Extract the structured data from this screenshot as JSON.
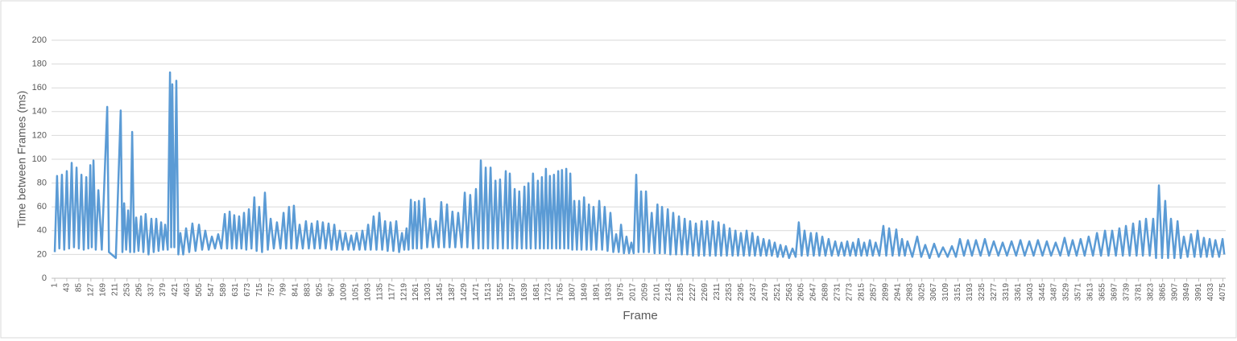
{
  "chart_data": {
    "type": "line",
    "y_label": "Time between Frames (ms)",
    "x_label": "Frame",
    "x": [
      1,
      9,
      17,
      26,
      34,
      43,
      51,
      60,
      68,
      77,
      85,
      94,
      102,
      111,
      118,
      125,
      130,
      136,
      144,
      153,
      165,
      184,
      190,
      214,
      231,
      237,
      243,
      250,
      257,
      264,
      271,
      278,
      285,
      293,
      302,
      310,
      318,
      328,
      338,
      346,
      355,
      363,
      372,
      379,
      386,
      395,
      403,
      407,
      411,
      418,
      425,
      432,
      439,
      449,
      459,
      470,
      481,
      492,
      504,
      515,
      526,
      538,
      549,
      560,
      571,
      582,
      594,
      602,
      611,
      619,
      627,
      635,
      644,
      652,
      661,
      669,
      678,
      687,
      697,
      705,
      714,
      724,
      734,
      744,
      754,
      765,
      776,
      788,
      799,
      808,
      818,
      826,
      835,
      845,
      855,
      866,
      877,
      887,
      897,
      907,
      917,
      926,
      936,
      946,
      956,
      966,
      976,
      985,
      995,
      1005,
      1015,
      1025,
      1035,
      1044,
      1054,
      1064,
      1074,
      1084,
      1094,
      1103,
      1113,
      1123,
      1133,
      1143,
      1153,
      1162,
      1172,
      1182,
      1192,
      1202,
      1212,
      1220,
      1228,
      1235,
      1243,
      1250,
      1257,
      1264,
      1271,
      1280,
      1290,
      1300,
      1310,
      1320,
      1330,
      1340,
      1349,
      1359,
      1369,
      1378,
      1388,
      1398,
      1408,
      1420,
      1431,
      1440,
      1450,
      1460,
      1470,
      1479,
      1487,
      1495,
      1504,
      1512,
      1521,
      1529,
      1538,
      1546,
      1554,
      1564,
      1574,
      1581,
      1588,
      1597,
      1605,
      1613,
      1621,
      1630,
      1639,
      1646,
      1653,
      1661,
      1669,
      1678,
      1686,
      1693,
      1700,
      1707,
      1714,
      1721,
      1728,
      1735,
      1742,
      1750,
      1757,
      1763,
      1770,
      1778,
      1785,
      1792,
      1799,
      1806,
      1813,
      1822,
      1830,
      1838,
      1847,
      1856,
      1864,
      1872,
      1880,
      1890,
      1900,
      1910,
      1919,
      1929,
      1939,
      1949,
      1959,
      1968,
      1976,
      1986,
      1995,
      2004,
      2012,
      2020,
      2029,
      2037,
      2046,
      2055,
      2063,
      2073,
      2083,
      2093,
      2103,
      2111,
      2119,
      2129,
      2139,
      2148,
      2158,
      2168,
      2178,
      2188,
      2198,
      2207,
      2217,
      2227,
      2237,
      2247,
      2257,
      2266,
      2276,
      2286,
      2296,
      2306,
      2316,
      2325,
      2335,
      2345,
      2355,
      2365,
      2375,
      2384,
      2394,
      2404,
      2414,
      2424,
      2434,
      2443,
      2453,
      2463,
      2473,
      2483,
      2493,
      2502,
      2512,
      2522,
      2532,
      2541,
      2551,
      2562,
      2574,
      2585,
      2596,
      2606,
      2616,
      2627,
      2638,
      2648,
      2658,
      2668,
      2678,
      2689,
      2700,
      2711,
      2723,
      2734,
      2745,
      2755,
      2765,
      2775,
      2785,
      2795,
      2804,
      2814,
      2824,
      2834,
      2844,
      2854,
      2864,
      2877,
      2891,
      2901,
      2911,
      2923,
      2936,
      2946,
      2956,
      2966,
      2975,
      2992,
      3009,
      3023,
      3037,
      3052,
      3068,
      3084,
      3099,
      3115,
      3130,
      3144,
      3158,
      3172,
      3186,
      3200,
      3214,
      3230,
      3245,
      3260,
      3276,
      3292,
      3307,
      3322,
      3338,
      3354,
      3369,
      3384,
      3400,
      3415,
      3430,
      3446,
      3461,
      3476,
      3492,
      3508,
      3523,
      3537,
      3551,
      3565,
      3579,
      3593,
      3607,
      3622,
      3636,
      3650,
      3664,
      3676,
      3689,
      3702,
      3714,
      3726,
      3737,
      3750,
      3762,
      3774,
      3785,
      3796,
      3807,
      3820,
      3832,
      3842,
      3852,
      3863,
      3874,
      3884,
      3894,
      3906,
      3917,
      3928,
      3939,
      3952,
      3964,
      3976,
      3987,
      3998,
      4009,
      4019,
      4029,
      4039,
      4049,
      4062,
      4074,
      4080
    ],
    "series": [
      {
        "color": "#5b9bd5",
        "values": [
          22,
          86,
          25,
          87,
          24,
          90,
          25,
          97,
          26,
          93,
          25,
          87,
          24,
          85,
          25,
          95,
          26,
          99,
          24,
          74,
          24,
          144,
          22,
          17,
          141,
          22,
          63,
          24,
          57,
          22,
          123,
          22,
          51,
          23,
          52,
          22,
          54,
          20,
          50,
          22,
          50,
          23,
          47,
          24,
          45,
          24,
          173,
          26,
          163,
          26,
          166,
          20,
          38,
          20,
          42,
          22,
          46,
          23,
          45,
          24,
          40,
          24,
          35,
          25,
          37,
          25,
          54,
          25,
          56,
          25,
          53,
          25,
          52,
          25,
          55,
          24,
          58,
          25,
          68,
          23,
          60,
          22,
          72,
          24,
          50,
          25,
          47,
          25,
          55,
          25,
          60,
          25,
          61,
          25,
          45,
          25,
          48,
          25,
          46,
          25,
          48,
          25,
          47,
          25,
          46,
          24,
          45,
          24,
          40,
          24,
          38,
          24,
          36,
          24,
          38,
          24,
          40,
          24,
          45,
          24,
          52,
          24,
          55,
          24,
          48,
          23,
          47,
          23,
          48,
          22,
          38,
          24,
          42,
          24,
          66,
          25,
          64,
          25,
          65,
          25,
          67,
          26,
          50,
          26,
          48,
          26,
          64,
          26,
          62,
          26,
          56,
          26,
          55,
          26,
          72,
          26,
          70,
          25,
          75,
          25,
          99,
          25,
          93,
          25,
          93,
          25,
          82,
          25,
          83,
          25,
          90,
          25,
          88,
          25,
          75,
          25,
          73,
          25,
          77,
          25,
          80,
          25,
          88,
          25,
          82,
          25,
          85,
          25,
          92,
          25,
          86,
          25,
          87,
          25,
          90,
          25,
          91,
          25,
          92,
          25,
          88,
          24,
          65,
          24,
          65,
          24,
          68,
          24,
          62,
          24,
          60,
          24,
          65,
          24,
          60,
          23,
          55,
          22,
          37,
          22,
          45,
          21,
          35,
          21,
          30,
          21,
          87,
          22,
          73,
          22,
          73,
          22,
          55,
          21,
          62,
          21,
          60,
          21,
          58,
          20,
          55,
          20,
          52,
          20,
          50,
          20,
          48,
          19,
          46,
          19,
          48,
          19,
          48,
          19,
          48,
          19,
          47,
          19,
          45,
          19,
          42,
          19,
          40,
          19,
          38,
          19,
          40,
          19,
          38,
          19,
          35,
          19,
          33,
          19,
          32,
          19,
          30,
          18,
          28,
          18,
          27,
          17,
          25,
          18,
          47,
          19,
          40,
          19,
          38,
          19,
          38,
          19,
          35,
          19,
          33,
          19,
          31,
          19,
          30,
          19,
          31,
          19,
          30,
          19,
          33,
          19,
          30,
          19,
          32,
          19,
          30,
          19,
          44,
          19,
          42,
          19,
          41,
          19,
          33,
          19,
          31,
          18,
          35,
          18,
          28,
          17,
          29,
          18,
          26,
          18,
          27,
          18,
          33,
          19,
          32,
          19,
          32,
          19,
          33,
          19,
          31,
          19,
          30,
          19,
          31,
          19,
          32,
          19,
          31,
          19,
          32,
          19,
          31,
          19,
          30,
          19,
          34,
          19,
          32,
          19,
          33,
          19,
          35,
          19,
          38,
          19,
          40,
          19,
          40,
          19,
          42,
          19,
          44,
          19,
          46,
          19,
          48,
          19,
          50,
          19,
          50,
          17,
          78,
          17,
          65,
          17,
          50,
          17,
          48,
          17,
          35,
          18,
          37,
          18,
          40,
          18,
          34,
          18,
          33,
          18,
          32,
          18,
          33,
          20
        ]
      }
    ],
    "xlim": [
      1,
      4085
    ],
    "xticks": [
      1,
      43,
      85,
      127,
      169,
      211,
      253,
      295,
      337,
      379,
      421,
      463,
      505,
      547,
      589,
      631,
      673,
      715,
      757,
      799,
      841,
      883,
      925,
      967,
      1009,
      1051,
      1093,
      1135,
      1177,
      1219,
      1261,
      1303,
      1345,
      1387,
      1429,
      1471,
      1513,
      1555,
      1597,
      1639,
      1681,
      1723,
      1765,
      1807,
      1849,
      1891,
      1933,
      1975,
      2017,
      2059,
      2101,
      2143,
      2185,
      2227,
      2269,
      2311,
      2353,
      2395,
      2437,
      2479,
      2521,
      2563,
      2605,
      2647,
      2689,
      2731,
      2773,
      2815,
      2857,
      2899,
      2941,
      2983,
      3025,
      3067,
      3109,
      3151,
      3193,
      3235,
      3277,
      3319,
      3361,
      3403,
      3445,
      3487,
      3529,
      3571,
      3613,
      3655,
      3697,
      3739,
      3781,
      3823,
      3865,
      3907,
      3949,
      3991,
      4033,
      4075
    ],
    "ylim": [
      0,
      200
    ],
    "yticks": [
      0,
      20,
      40,
      60,
      80,
      100,
      120,
      140,
      160,
      180,
      200
    ],
    "grid": true
  }
}
